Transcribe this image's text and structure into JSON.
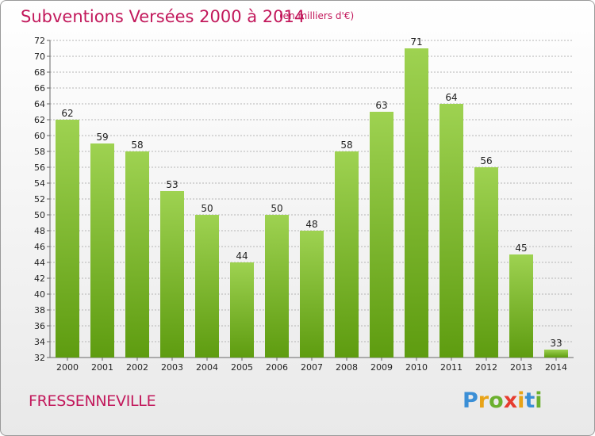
{
  "title": "Subventions Versées 2000 à 2014",
  "subtitle": "(en milliers d'€)",
  "commune": "FRESSENNEVILLE",
  "logo": {
    "letters": [
      "P",
      "r",
      "o",
      "x",
      "i",
      "t",
      "i"
    ],
    "colors": [
      "#3b8fd6",
      "#e8a317",
      "#6bb02e",
      "#e63c2f",
      "#e8a317",
      "#3b8fd6",
      "#6bb02e"
    ]
  },
  "colors": {
    "bar_top": "#9ed251",
    "bar_bottom": "#5e9c10",
    "title": "#c2185b",
    "grid": "#b5b5b5"
  },
  "chart_data": {
    "type": "bar",
    "title": "Subventions Versées 2000 à 2014",
    "subtitle": "(en milliers d'€)",
    "xlabel": "",
    "ylabel": "",
    "categories": [
      "2000",
      "2001",
      "2002",
      "2003",
      "2004",
      "2005",
      "2006",
      "2007",
      "2008",
      "2009",
      "2010",
      "2011",
      "2012",
      "2013",
      "2014"
    ],
    "values": [
      62,
      59,
      58,
      53,
      50,
      44,
      50,
      48,
      58,
      63,
      71,
      64,
      56,
      45,
      33
    ],
    "ylim": [
      32,
      72
    ],
    "ytick_step": 2,
    "grid": "horizontal dashed",
    "data_labels": true
  }
}
